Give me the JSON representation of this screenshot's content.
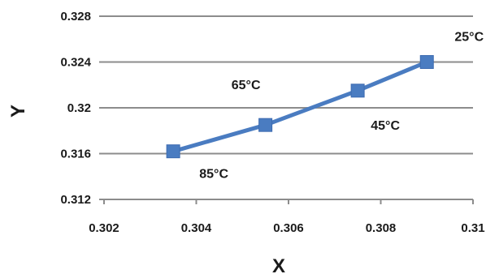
{
  "chart_data": {
    "type": "line",
    "title": "",
    "xlabel": "X",
    "ylabel": "Y",
    "xlim": [
      0.302,
      0.31
    ],
    "ylim": [
      0.312,
      0.328
    ],
    "x_ticks": [
      "0.302",
      "0.304",
      "0.306",
      "0.308",
      "0.31"
    ],
    "y_ticks": [
      "0.312",
      "0.316",
      "0.32",
      "0.324",
      "0.328"
    ],
    "grid": "horizontal",
    "series": [
      {
        "x": [
          0.3035,
          0.3055,
          0.3075,
          0.309
        ],
        "y": [
          0.3162,
          0.3185,
          0.3215,
          0.324
        ],
        "color": "#4a7cc1",
        "marker": "square"
      }
    ],
    "annotations": [
      {
        "text": "85°C",
        "x": 0.3035,
        "y": 0.3162
      },
      {
        "text": "65°C",
        "x": 0.3055,
        "y": 0.3185
      },
      {
        "text": "45°C",
        "x": 0.3075,
        "y": 0.3215
      },
      {
        "text": "25°C",
        "x": 0.309,
        "y": 0.324
      }
    ]
  }
}
